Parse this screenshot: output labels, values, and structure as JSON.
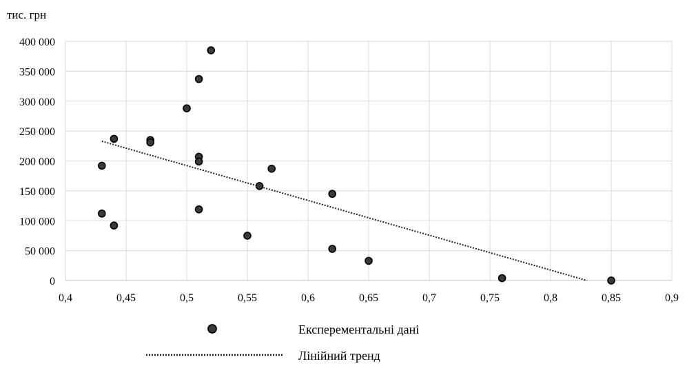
{
  "chart_data": {
    "type": "scatter",
    "ylabel": "тис. грн",
    "xlim": [
      0.4,
      0.9
    ],
    "ylim": [
      0,
      400000
    ],
    "x_ticks": [
      0.4,
      0.45,
      0.5,
      0.55,
      0.6,
      0.65,
      0.7,
      0.75,
      0.8,
      0.85,
      0.9
    ],
    "x_tick_labels": [
      "0,4",
      "0,45",
      "0,5",
      "0,55",
      "0,6",
      "0,65",
      "0,7",
      "0,75",
      "0,8",
      "0,85",
      "0,9"
    ],
    "y_ticks": [
      0,
      50000,
      100000,
      150000,
      200000,
      250000,
      300000,
      350000,
      400000
    ],
    "y_tick_labels": [
      "0",
      "50 000",
      "100 000",
      "150 000",
      "200 000",
      "250 000",
      "300 000",
      "350 000",
      "400 000"
    ],
    "grid": true,
    "legend_position": "bottom",
    "series": [
      {
        "name": "Експерементальні дані",
        "kind": "scatter",
        "color": "#3a3a3a",
        "points": [
          {
            "x": 0.43,
            "y": 192000
          },
          {
            "x": 0.43,
            "y": 112000
          },
          {
            "x": 0.44,
            "y": 237000
          },
          {
            "x": 0.44,
            "y": 92000
          },
          {
            "x": 0.47,
            "y": 235000
          },
          {
            "x": 0.47,
            "y": 231000
          },
          {
            "x": 0.5,
            "y": 288000
          },
          {
            "x": 0.51,
            "y": 337000
          },
          {
            "x": 0.51,
            "y": 207000
          },
          {
            "x": 0.51,
            "y": 199000
          },
          {
            "x": 0.51,
            "y": 119000
          },
          {
            "x": 0.52,
            "y": 385000
          },
          {
            "x": 0.55,
            "y": 75000
          },
          {
            "x": 0.56,
            "y": 158000
          },
          {
            "x": 0.57,
            "y": 187000
          },
          {
            "x": 0.62,
            "y": 145000
          },
          {
            "x": 0.62,
            "y": 53000
          },
          {
            "x": 0.65,
            "y": 33000
          },
          {
            "x": 0.76,
            "y": 4000
          },
          {
            "x": 0.85,
            "y": 0
          }
        ]
      },
      {
        "name": "Лінійний тренд",
        "kind": "trendline",
        "color": "#222222",
        "points": [
          {
            "x": 0.43,
            "y": 233000
          },
          {
            "x": 0.83,
            "y": 0
          }
        ]
      }
    ]
  }
}
